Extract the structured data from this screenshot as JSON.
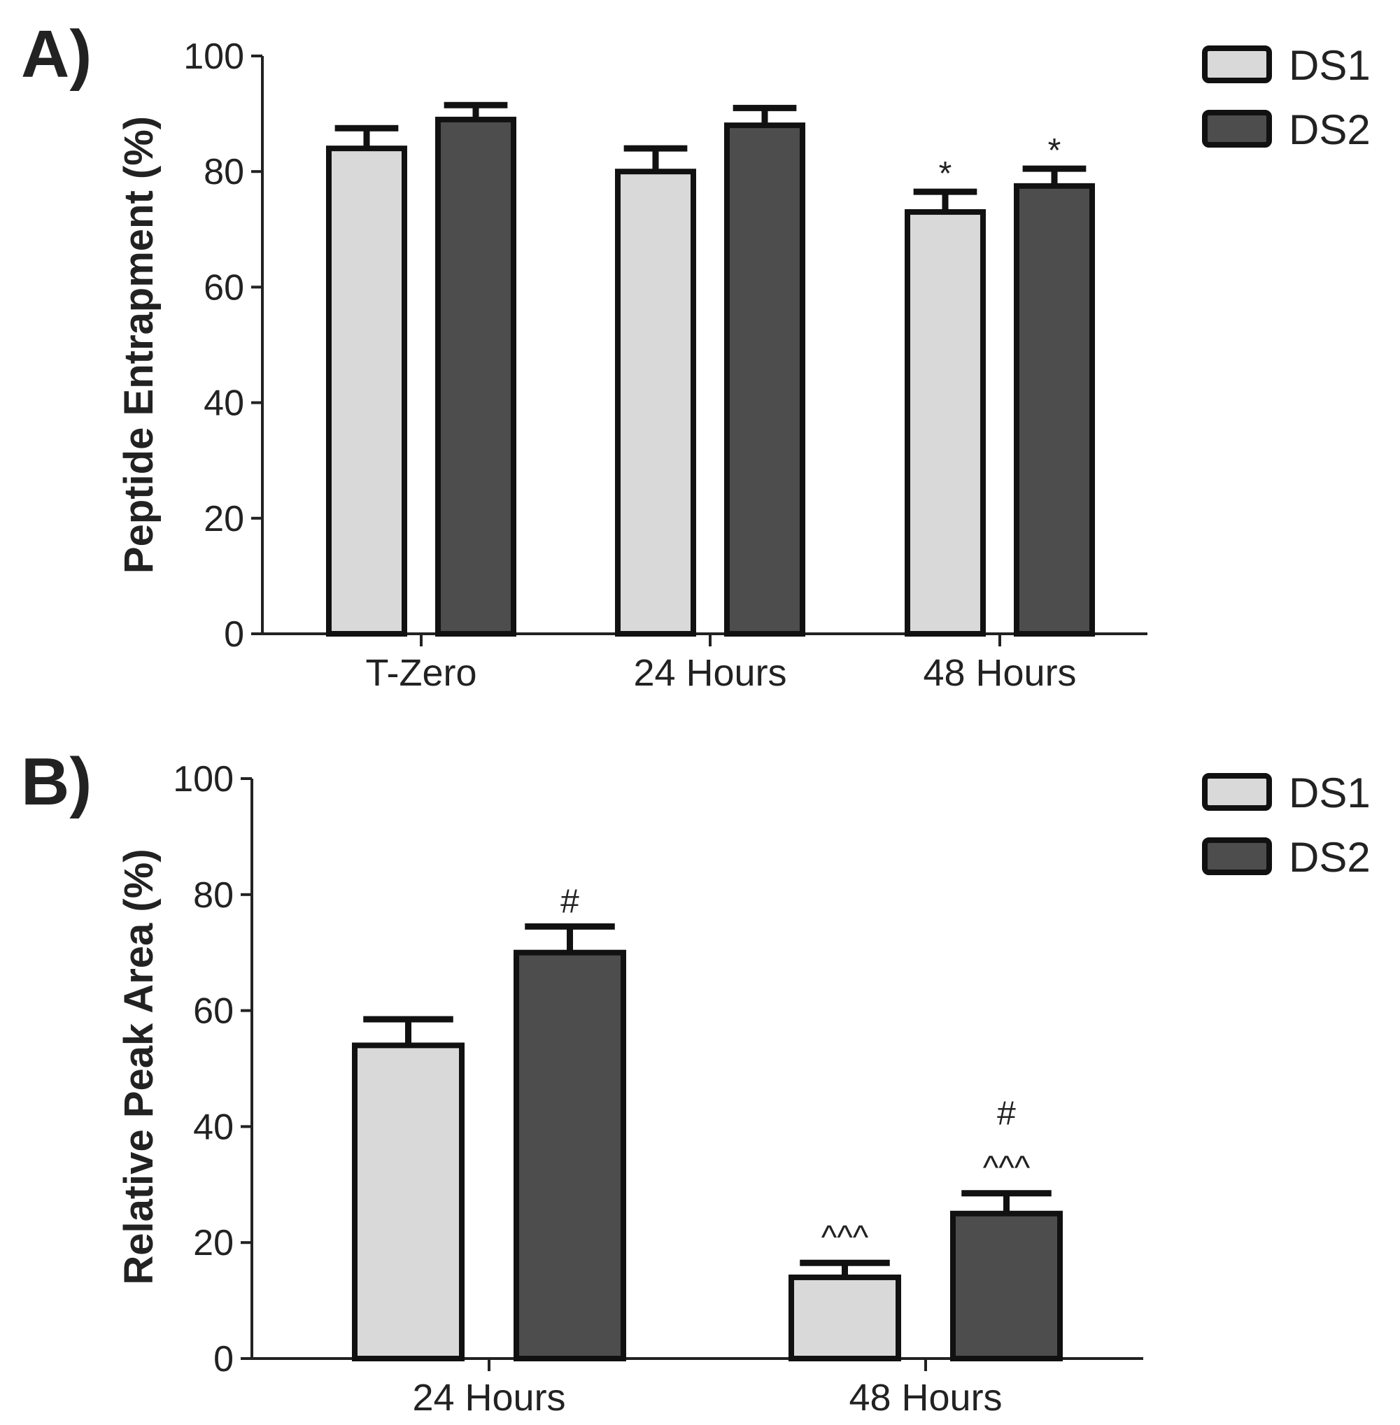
{
  "chart_data": [
    {
      "panel_label": "A)",
      "type": "bar",
      "ylabel": "Peptide Entrapment (%)",
      "xlabel": "",
      "ylim": [
        0,
        100
      ],
      "yticks": [
        0,
        20,
        40,
        60,
        80,
        100
      ],
      "categories": [
        "T-Zero",
        "24 Hours",
        "48 Hours"
      ],
      "series": [
        {
          "name": "DS1",
          "color": "#d9d9d9",
          "values": [
            84,
            80,
            73
          ],
          "errors": [
            3.5,
            4,
            3.5
          ]
        },
        {
          "name": "DS2",
          "color": "#4d4d4d",
          "values": [
            89,
            88,
            77.5
          ],
          "errors": [
            2.5,
            3,
            3
          ]
        }
      ],
      "annotations": [
        {
          "series": 0,
          "category": 2,
          "text": "*"
        },
        {
          "series": 1,
          "category": 2,
          "text": "*"
        }
      ],
      "legend": {
        "position": "top-right",
        "entries": [
          "DS1",
          "DS2"
        ]
      }
    },
    {
      "panel_label": "B)",
      "type": "bar",
      "ylabel": "Relative Peak Area (%)",
      "xlabel": "",
      "ylim": [
        0,
        100
      ],
      "yticks": [
        0,
        20,
        40,
        60,
        80,
        100
      ],
      "categories": [
        "24 Hours",
        "48 Hours"
      ],
      "series": [
        {
          "name": "DS1",
          "color": "#d9d9d9",
          "values": [
            54,
            14
          ],
          "errors": [
            4.5,
            2.5
          ]
        },
        {
          "name": "DS2",
          "color": "#4d4d4d",
          "values": [
            70,
            25
          ],
          "errors": [
            4.5,
            3.5
          ]
        }
      ],
      "annotations": [
        {
          "series": 1,
          "category": 0,
          "text": "#"
        },
        {
          "series": 0,
          "category": 1,
          "text": "^^^"
        },
        {
          "series": 1,
          "category": 1,
          "text": "^^^"
        },
        {
          "series": 1,
          "category": 1,
          "text": "#"
        }
      ],
      "legend": {
        "position": "top-right",
        "entries": [
          "DS1",
          "DS2"
        ]
      }
    }
  ]
}
